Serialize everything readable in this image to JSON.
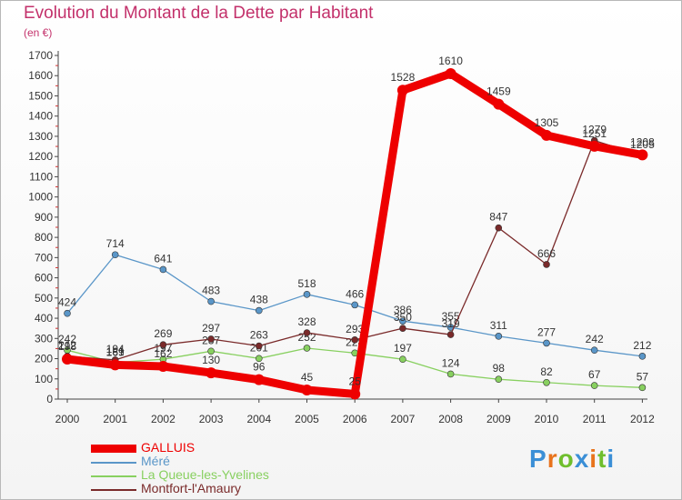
{
  "chart_data": {
    "type": "line",
    "title": "Evolution du Montant de la Dette par Habitant",
    "subtitle": "(en €)",
    "x": [
      "2000",
      "2001",
      "2002",
      "2003",
      "2004",
      "2005",
      "2006",
      "2007",
      "2008",
      "2009",
      "2010",
      "2011",
      "2012"
    ],
    "yticks": [
      0,
      100,
      200,
      300,
      400,
      500,
      600,
      700,
      800,
      900,
      1000,
      1100,
      1200,
      1300,
      1400,
      1500,
      1600,
      1700
    ],
    "ylim": [
      0,
      1700
    ],
    "grid": false,
    "legend": "bottom-left",
    "series": [
      {
        "name": "GALLUIS",
        "color": "#ee0000",
        "values": [
          198,
          169,
          162,
          130,
          96,
          45,
          25,
          1528,
          1610,
          1459,
          1305,
          1251,
          1208
        ]
      },
      {
        "name": "Méré",
        "color": "#5a96c8",
        "values": [
          424,
          714,
          641,
          483,
          438,
          518,
          466,
          386,
          355,
          311,
          277,
          242,
          212
        ]
      },
      {
        "name": "La Queue-les-Yvelines",
        "color": "#88d060",
        "values": [
          242,
          181,
          197,
          237,
          201,
          252,
          228,
          197,
          124,
          98,
          82,
          67,
          57
        ]
      },
      {
        "name": "Montfort-l'Amaury",
        "color": "#7a2a2a",
        "values": [
          212,
          194,
          269,
          297,
          263,
          328,
          293,
          350,
          319,
          847,
          666,
          1279,
          1205
        ]
      }
    ]
  },
  "logo": {
    "letters": [
      {
        "ch": "P",
        "color": "#3b8fd6"
      },
      {
        "ch": "r",
        "color": "#e8731c"
      },
      {
        "ch": "o",
        "color": "#6fbe2d"
      },
      {
        "ch": "x",
        "color": "#3b8fd6"
      },
      {
        "ch": "i",
        "color": "#e8731c"
      },
      {
        "ch": "t",
        "color": "#6fbe2d"
      },
      {
        "ch": "i",
        "color": "#3b8fd6"
      }
    ]
  }
}
